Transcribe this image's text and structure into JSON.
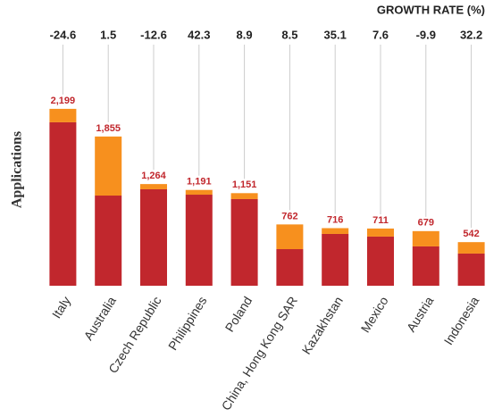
{
  "chart_data": {
    "type": "bar",
    "stacked": true,
    "y_label": "Applications",
    "categories": [
      "Italy",
      "Australia",
      "Czech Republic",
      "Philippines",
      "Poland",
      "China, Hong Kong SAR",
      "Kazakhstan",
      "Mexico",
      "Austria",
      "Indonesia"
    ],
    "series": [
      {
        "color": "#c1272d",
        "values": [
          2032,
          1121,
          1199,
          1132,
          1077,
          455,
          644,
          611,
          489,
          400
        ]
      },
      {
        "color": "#f7901e",
        "values": [
          167,
          734,
          65,
          59,
          74,
          307,
          72,
          100,
          190,
          142
        ]
      }
    ],
    "totals": {
      "values": [
        2199,
        1855,
        1264,
        1191,
        1151,
        762,
        716,
        711,
        679,
        542
      ],
      "value_labels": [
        "2,199",
        "1,855",
        "1,264",
        "1,191",
        "1,151",
        "762",
        "716",
        "711",
        "679",
        "542"
      ]
    },
    "growth_rate_title": "GROWTH RATE (%)",
    "growth_rate": [
      -24.6,
      1.5,
      -12.6,
      42.3,
      8.9,
      8.5,
      35.1,
      7.6,
      -9.9,
      32.2
    ],
    "ylim": [
      0,
      2400
    ]
  }
}
